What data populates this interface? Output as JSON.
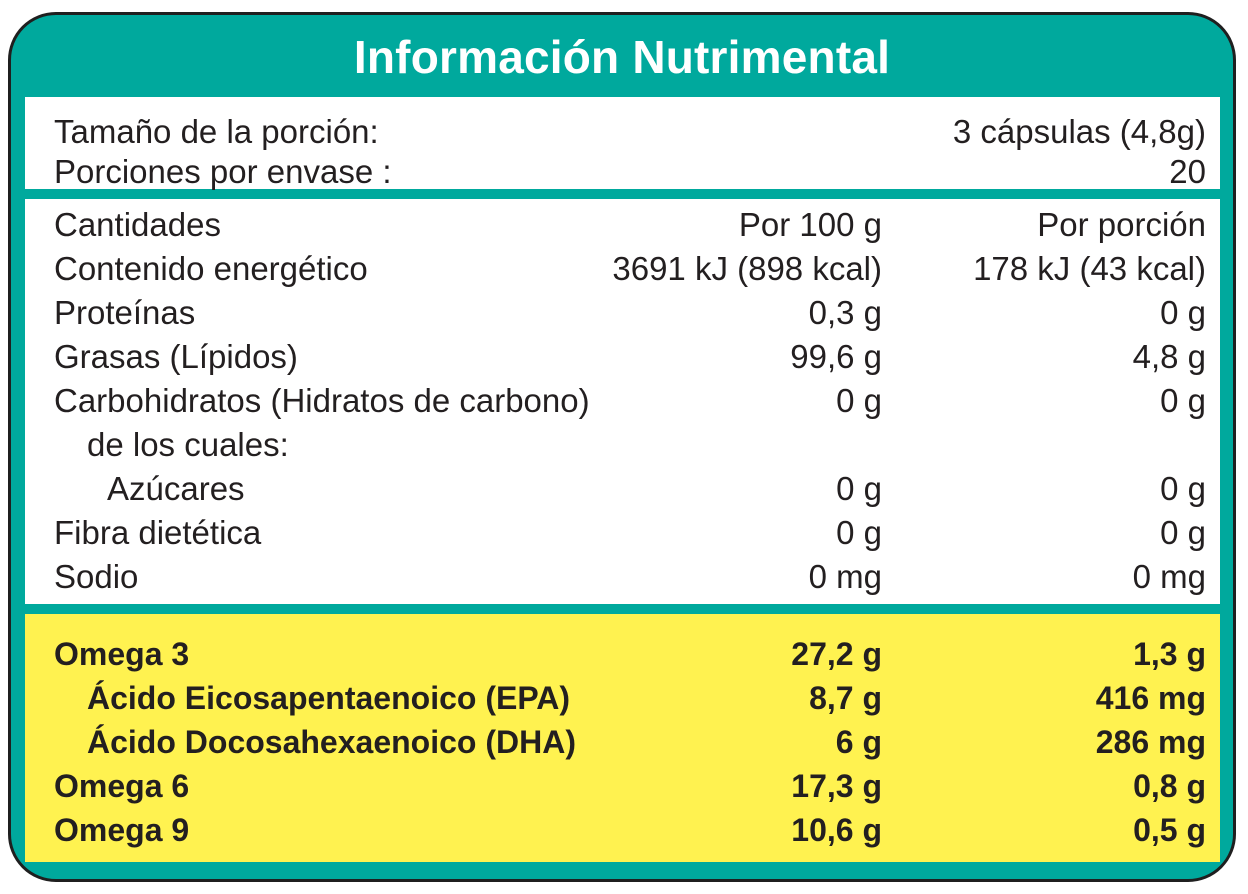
{
  "title": "Información Nutrimental",
  "serving": {
    "size_label": "Tamaño de la porción:",
    "size_value": "3 cápsulas (4,8g)",
    "per_container_label": "Porciones por envase :",
    "per_container_value": "20"
  },
  "nutrients": {
    "header": {
      "name": "Cantidades",
      "per100": "Por 100 g",
      "perServing": "Por porción"
    },
    "rows": [
      {
        "name": "Contenido energético",
        "per100": "3691 kJ (898 kcal)",
        "perServing": "178 kJ (43 kcal)"
      },
      {
        "name": "Proteínas",
        "per100": "0,3 g",
        "perServing": "0 g"
      },
      {
        "name": "Grasas (Lípidos)",
        "per100": "99,6 g",
        "perServing": "4,8 g"
      },
      {
        "name": "Carbohidratos (Hidratos de carbono)",
        "per100": "0 g",
        "perServing": "0 g"
      },
      {
        "name": "de los cuales:",
        "per100": "",
        "perServing": ""
      },
      {
        "name": "Azúcares",
        "per100": "0 g",
        "perServing": "0 g"
      },
      {
        "name": "Fibra dietética",
        "per100": "0 g",
        "perServing": "0 g"
      },
      {
        "name": "Sodio",
        "per100": "0 mg",
        "perServing": "0 mg"
      }
    ]
  },
  "omegas": {
    "rows": [
      {
        "name": "Omega 3",
        "per100": "27,2 g",
        "perServing": "1,3 g"
      },
      {
        "name": "Ácido Eicosapentaenoico (EPA)",
        "per100": "8,7 g",
        "perServing": "416 mg"
      },
      {
        "name": "Ácido Docosahexaenoico (DHA)",
        "per100": "6 g",
        "perServing": "286 mg"
      },
      {
        "name": "Omega 6",
        "per100": "17,3 g",
        "perServing": "0,8 g"
      },
      {
        "name": "Omega 9",
        "per100": "10,6 g",
        "perServing": "0,5 g"
      }
    ]
  },
  "colors": {
    "frame": "#00a99d",
    "highlight": "#fff250",
    "text": "#231f20"
  }
}
